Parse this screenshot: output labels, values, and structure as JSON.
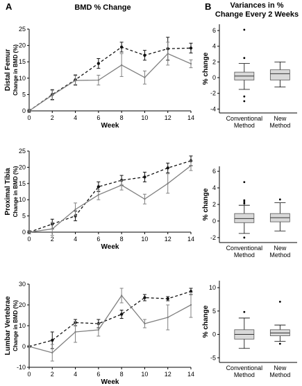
{
  "panel_labels": {
    "a": "A",
    "b": "B"
  },
  "headers": {
    "left": "BMD % Change",
    "right_line1": "Variances in %",
    "right_line2": "Change Every 2 Weeks"
  },
  "colors": {
    "dashed_series": "#111111",
    "solid_series": "#808080",
    "box_fill": "#d9d9d9",
    "axis": "#000000"
  },
  "chart_data": [
    {
      "type": "line",
      "region": "Distal Femur",
      "ylabel": "Distal Femur",
      "ylabel_sub": "Change in BMD (%)",
      "xlabel": "Week",
      "x": [
        0,
        2,
        4,
        6,
        8,
        10,
        12,
        14
      ],
      "xlim": [
        0,
        14
      ],
      "ylim": [
        0,
        25
      ],
      "yticks": [
        0,
        5,
        10,
        15,
        20,
        25
      ],
      "series": [
        {
          "style": "dashed",
          "marker": "filled",
          "values": [
            0,
            5,
            9.5,
            14.5,
            19.5,
            17,
            19,
            19.2
          ],
          "errors": [
            0.5,
            1.5,
            1.5,
            1.5,
            1.5,
            1.5,
            3.5,
            1.5
          ]
        },
        {
          "style": "solid",
          "marker": "none",
          "values": [
            0,
            4.8,
            9.3,
            9.4,
            14,
            10.2,
            17.5,
            14.4
          ],
          "errors": [
            0.5,
            1.5,
            1.5,
            1.5,
            3.5,
            2,
            3.5,
            1.2
          ]
        }
      ]
    },
    {
      "type": "box",
      "region": "Distal Femur",
      "ylabel": "% change",
      "categories": [
        "Conventional Method",
        "New Method"
      ],
      "ylim": [
        -4.5,
        6.8
      ],
      "yticks": [
        -4,
        -2,
        0,
        2,
        4,
        6
      ],
      "boxes": [
        {
          "whisker_low": -1.5,
          "q1": -0.3,
          "median": 0.2,
          "q3": 0.7,
          "whisker_high": 1.8,
          "outliers": [
            6.1,
            2.5,
            -2.4,
            -3.0
          ]
        },
        {
          "whisker_low": -1.2,
          "q1": -0.3,
          "median": 0.5,
          "q3": 1.0,
          "whisker_high": 2.0,
          "outliers": []
        }
      ]
    },
    {
      "type": "line",
      "region": "Proximal Tibia",
      "ylabel": "Proximal Tibia",
      "ylabel_sub": "Change in BMD (%)",
      "xlabel": "Week",
      "x": [
        0,
        2,
        4,
        6,
        8,
        10,
        12,
        14
      ],
      "xlim": [
        0,
        14
      ],
      "ylim": [
        0,
        25
      ],
      "yticks": [
        0,
        5,
        10,
        15,
        20,
        25
      ],
      "series": [
        {
          "style": "dashed",
          "marker": "filled",
          "values": [
            0,
            2.5,
            5,
            14,
            16,
            17,
            19.8,
            22
          ],
          "errors": [
            0.5,
            1.5,
            1.5,
            1.5,
            1.5,
            1.5,
            1.5,
            1.5
          ]
        },
        {
          "style": "solid",
          "marker": "none",
          "values": [
            0,
            1,
            7,
            11.5,
            14.5,
            10.2,
            15,
            20.5
          ],
          "errors": [
            0.5,
            2,
            2,
            1.5,
            1.5,
            1.5,
            3,
            1.5
          ]
        }
      ]
    },
    {
      "type": "box",
      "region": "Proximal Tibia",
      "ylabel": "% change",
      "categories": [
        "Conventional Method",
        "New Method"
      ],
      "ylim": [
        -2.6,
        6.6
      ],
      "yticks": [
        -2,
        0,
        2,
        4,
        6
      ],
      "boxes": [
        {
          "whisker_low": -1.5,
          "q1": -0.2,
          "median": 0.3,
          "q3": 0.9,
          "whisker_high": 1.9,
          "outliers": [
            4.7,
            2.5,
            2.3,
            2.1,
            -2.0
          ]
        },
        {
          "whisker_low": -1.2,
          "q1": -0.1,
          "median": 0.4,
          "q3": 0.9,
          "whisker_high": 2.2,
          "outliers": [
            2.6
          ]
        }
      ]
    },
    {
      "type": "line",
      "region": "Lumbar Vertebrae",
      "ylabel": "Lumbar Vertebrae",
      "ylabel_sub": "Change in BMD (%)",
      "xlabel": "Week",
      "x": [
        0,
        2,
        4,
        6,
        8,
        10,
        12,
        14
      ],
      "xlim": [
        0,
        14
      ],
      "ylim": [
        -10,
        30
      ],
      "yticks": [
        -10,
        0,
        10,
        20,
        30
      ],
      "series": [
        {
          "style": "dashed",
          "marker": "filled",
          "values": [
            0,
            3,
            11.5,
            11,
            15.5,
            23.5,
            23,
            26.5
          ],
          "errors": [
            0.5,
            4,
            1.5,
            2,
            2,
            1.5,
            1,
            1.5
          ]
        },
        {
          "style": "solid",
          "marker": "none",
          "values": [
            0,
            -3,
            7,
            8,
            24.5,
            11,
            14,
            20
          ],
          "errors": [
            0.5,
            4,
            5,
            3,
            3.5,
            2,
            6,
            6
          ]
        }
      ]
    },
    {
      "type": "box",
      "region": "Lumbar Vertebrae",
      "ylabel": "% change",
      "categories": [
        "Conventional Method",
        "New Method"
      ],
      "ylim": [
        -6,
        11.5
      ],
      "yticks": [
        -5,
        0,
        5,
        10
      ],
      "boxes": [
        {
          "whisker_low": -3,
          "q1": -1,
          "median": 0,
          "q3": 1,
          "whisker_high": 3.5,
          "outliers": [
            4.8
          ]
        },
        {
          "whisker_low": -1.5,
          "q1": -0.3,
          "median": 0.3,
          "q3": 1,
          "whisker_high": 2,
          "outliers": [
            7,
            -2
          ]
        }
      ]
    }
  ]
}
